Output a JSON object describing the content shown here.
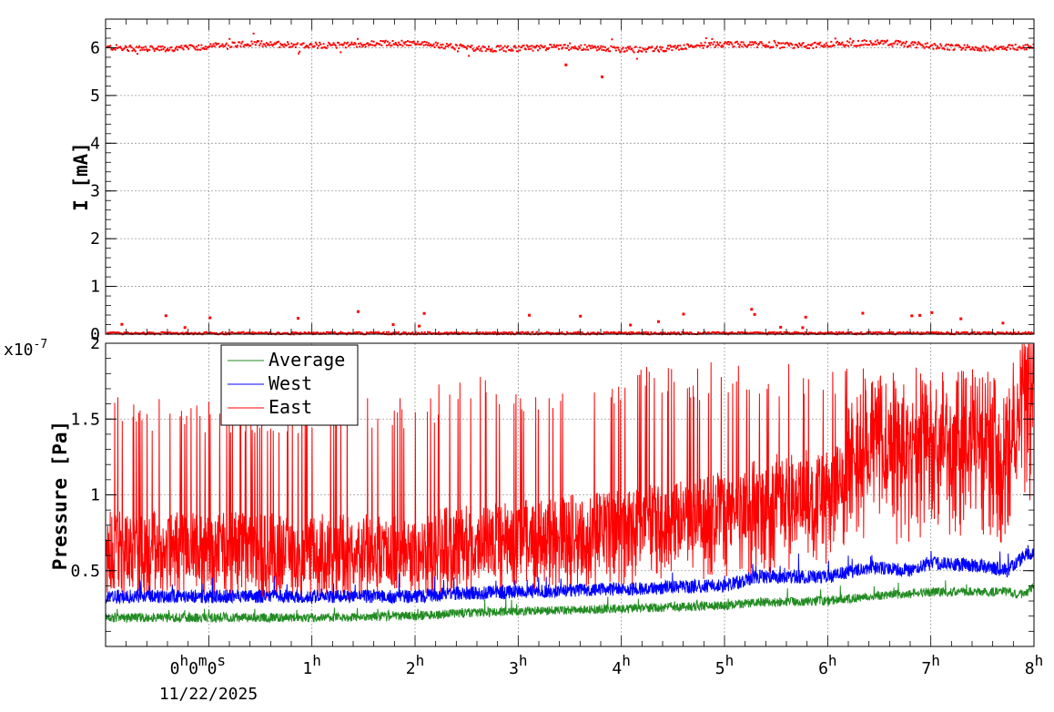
{
  "chart_data": [
    {
      "type": "scatter",
      "ylabel": "I [mA]",
      "ylim": [
        0,
        6.6
      ],
      "yticks": [
        "0",
        "1",
        "2",
        "3",
        "4",
        "5",
        "6"
      ],
      "grid": true,
      "xlim_hours": [
        -1,
        8
      ],
      "series": [
        {
          "color": "#ff0000",
          "level_upper": 6.03,
          "level_lower": 0.02,
          "outliers": [
            [
              3.45,
              5.65
            ],
            [
              3.8,
              5.4
            ]
          ]
        }
      ]
    },
    {
      "type": "line",
      "ylabel": "Pressure [Pa]",
      "yscale_label": "x10",
      "yscale_exp": "-7",
      "ylim": [
        0,
        2.0
      ],
      "yticks": [
        "0.5",
        "1",
        "1.5",
        "2"
      ],
      "grid": true,
      "xlim_hours": [
        -1,
        8
      ],
      "legend_position": "top-left",
      "series": [
        {
          "name": "Average",
          "color": "#228b22"
        },
        {
          "name": "West",
          "color": "#0000ff"
        },
        {
          "name": "East",
          "color": "#ff0000"
        }
      ],
      "profiles": {
        "x": [
          -1,
          0,
          1,
          2,
          2.4,
          3,
          4,
          5,
          5.3,
          6,
          6.4,
          6.8,
          7,
          7.5,
          7.75,
          7.9,
          8
        ],
        "average_base": [
          0.19,
          0.19,
          0.19,
          0.2,
          0.22,
          0.23,
          0.25,
          0.27,
          0.29,
          0.3,
          0.33,
          0.35,
          0.36,
          0.36,
          0.36,
          0.34,
          0.4
        ],
        "west_base": [
          0.33,
          0.33,
          0.33,
          0.33,
          0.35,
          0.36,
          0.38,
          0.4,
          0.46,
          0.46,
          0.52,
          0.5,
          0.55,
          0.53,
          0.5,
          0.6,
          0.62
        ],
        "east_base": [
          0.6,
          0.58,
          0.56,
          0.56,
          0.62,
          0.65,
          0.72,
          0.8,
          0.85,
          0.95,
          1.25,
          1.2,
          1.25,
          1.3,
          1.2,
          1.65,
          1.65
        ],
        "east_spike_max": [
          1.65,
          1.65,
          1.65,
          1.65,
          1.8,
          1.8,
          1.85,
          1.88,
          1.9,
          1.85,
          1.85,
          1.85,
          1.85,
          1.85,
          1.8,
          1.9,
          1.9
        ]
      }
    }
  ],
  "x_axis": {
    "ticks": [
      {
        "hour": 0,
        "main": "0",
        "sup": "h",
        "main2": "0",
        "sup2": "m",
        "main3": "0",
        "sup3": "s"
      },
      {
        "hour": 1,
        "main": "1",
        "sup": "h"
      },
      {
        "hour": 2,
        "main": "2",
        "sup": "h"
      },
      {
        "hour": 3,
        "main": "3",
        "sup": "h"
      },
      {
        "hour": 4,
        "main": "4",
        "sup": "h"
      },
      {
        "hour": 5,
        "main": "5",
        "sup": "h"
      },
      {
        "hour": 6,
        "main": "6",
        "sup": "h"
      },
      {
        "hour": 7,
        "main": "7",
        "sup": "h"
      },
      {
        "hour": 8,
        "main": "8",
        "sup": "h"
      }
    ],
    "date_label": "11/22/2025"
  }
}
